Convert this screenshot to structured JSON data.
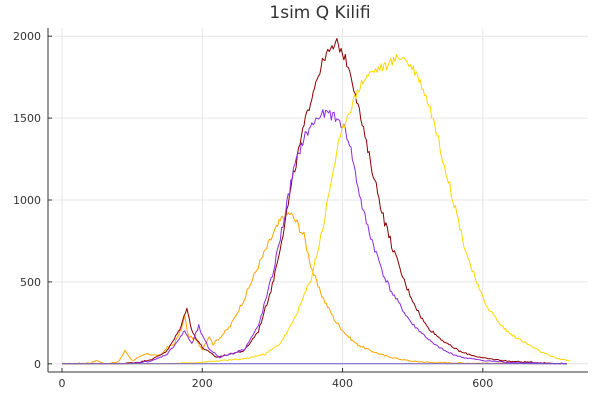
{
  "chart_data": {
    "type": "line",
    "title": "1sim Q Kilifi",
    "xlabel": "",
    "ylabel": "",
    "xlim": [
      -20,
      750
    ],
    "ylim": [
      -50,
      2050
    ],
    "xticks": [
      0,
      200,
      400,
      600
    ],
    "yticks": [
      0,
      500,
      1000,
      1500,
      2000
    ],
    "xtick_labels": [
      "0",
      "200",
      "400",
      "600"
    ],
    "ytick_labels": [
      "0",
      "500",
      "1000",
      "1500",
      "2000"
    ],
    "grid": true,
    "legend": "none",
    "series": [
      {
        "color": "#ffa500",
        "points": [
          [
            0,
            0
          ],
          [
            40,
            5
          ],
          [
            50,
            20
          ],
          [
            60,
            0
          ],
          [
            80,
            10
          ],
          [
            90,
            80
          ],
          [
            100,
            20
          ],
          [
            120,
            60
          ],
          [
            140,
            50
          ],
          [
            150,
            100
          ],
          [
            160,
            120
          ],
          [
            170,
            210
          ],
          [
            175,
            290
          ],
          [
            180,
            170
          ],
          [
            190,
            150
          ],
          [
            200,
            90
          ],
          [
            210,
            170
          ],
          [
            215,
            120
          ],
          [
            225,
            160
          ],
          [
            240,
            230
          ],
          [
            260,
            400
          ],
          [
            280,
            600
          ],
          [
            300,
            780
          ],
          [
            315,
            900
          ],
          [
            325,
            920
          ],
          [
            335,
            860
          ],
          [
            345,
            780
          ],
          [
            355,
            600
          ],
          [
            365,
            470
          ],
          [
            375,
            380
          ],
          [
            390,
            260
          ],
          [
            405,
            180
          ],
          [
            420,
            120
          ],
          [
            440,
            80
          ],
          [
            460,
            50
          ],
          [
            480,
            30
          ],
          [
            500,
            15
          ],
          [
            530,
            8
          ],
          [
            580,
            4
          ],
          [
            640,
            2
          ],
          [
            720,
            0
          ]
        ]
      },
      {
        "color": "#8b0000",
        "points": [
          [
            0,
            0
          ],
          [
            80,
            0
          ],
          [
            110,
            10
          ],
          [
            130,
            30
          ],
          [
            150,
            80
          ],
          [
            160,
            150
          ],
          [
            170,
            230
          ],
          [
            178,
            350
          ],
          [
            185,
            200
          ],
          [
            200,
            100
          ],
          [
            220,
            40
          ],
          [
            240,
            60
          ],
          [
            260,
            80
          ],
          [
            280,
            200
          ],
          [
            300,
            480
          ],
          [
            315,
            800
          ],
          [
            330,
            1150
          ],
          [
            345,
            1450
          ],
          [
            360,
            1700
          ],
          [
            375,
            1880
          ],
          [
            385,
            1920
          ],
          [
            392,
            1960
          ],
          [
            400,
            1900
          ],
          [
            410,
            1800
          ],
          [
            420,
            1620
          ],
          [
            430,
            1420
          ],
          [
            440,
            1230
          ],
          [
            450,
            1050
          ],
          [
            460,
            870
          ],
          [
            470,
            730
          ],
          [
            480,
            600
          ],
          [
            490,
            480
          ],
          [
            500,
            390
          ],
          [
            510,
            300
          ],
          [
            520,
            230
          ],
          [
            535,
            170
          ],
          [
            550,
            120
          ],
          [
            570,
            70
          ],
          [
            600,
            35
          ],
          [
            640,
            15
          ],
          [
            690,
            5
          ],
          [
            720,
            0
          ]
        ]
      },
      {
        "color": "#8a2be2",
        "points": [
          [
            0,
            0
          ],
          [
            100,
            0
          ],
          [
            130,
            20
          ],
          [
            150,
            60
          ],
          [
            165,
            140
          ],
          [
            175,
            200
          ],
          [
            185,
            120
          ],
          [
            195,
            230
          ],
          [
            200,
            170
          ],
          [
            210,
            90
          ],
          [
            225,
            40
          ],
          [
            240,
            60
          ],
          [
            260,
            90
          ],
          [
            280,
            230
          ],
          [
            300,
            540
          ],
          [
            315,
            850
          ],
          [
            330,
            1180
          ],
          [
            345,
            1380
          ],
          [
            360,
            1480
          ],
          [
            370,
            1520
          ],
          [
            380,
            1530
          ],
          [
            390,
            1500
          ],
          [
            400,
            1460
          ],
          [
            410,
            1350
          ],
          [
            420,
            1120
          ],
          [
            430,
            920
          ],
          [
            440,
            780
          ],
          [
            450,
            650
          ],
          [
            460,
            530
          ],
          [
            470,
            440
          ],
          [
            480,
            370
          ],
          [
            490,
            300
          ],
          [
            500,
            240
          ],
          [
            515,
            180
          ],
          [
            530,
            120
          ],
          [
            550,
            70
          ],
          [
            570,
            40
          ],
          [
            600,
            20
          ],
          [
            640,
            8
          ],
          [
            680,
            3
          ],
          [
            720,
            0
          ]
        ]
      },
      {
        "color": "#ffd700",
        "points": [
          [
            0,
            0
          ],
          [
            150,
            0
          ],
          [
            180,
            5
          ],
          [
            200,
            10
          ],
          [
            230,
            20
          ],
          [
            260,
            30
          ],
          [
            290,
            60
          ],
          [
            310,
            120
          ],
          [
            325,
            220
          ],
          [
            340,
            360
          ],
          [
            355,
            520
          ],
          [
            365,
            700
          ],
          [
            375,
            900
          ],
          [
            385,
            1150
          ],
          [
            395,
            1350
          ],
          [
            405,
            1500
          ],
          [
            415,
            1600
          ],
          [
            425,
            1700
          ],
          [
            435,
            1760
          ],
          [
            445,
            1790
          ],
          [
            455,
            1810
          ],
          [
            465,
            1820
          ],
          [
            475,
            1860
          ],
          [
            485,
            1880
          ],
          [
            495,
            1830
          ],
          [
            505,
            1780
          ],
          [
            515,
            1680
          ],
          [
            525,
            1560
          ],
          [
            535,
            1400
          ],
          [
            545,
            1220
          ],
          [
            555,
            1050
          ],
          [
            565,
            880
          ],
          [
            575,
            700
          ],
          [
            585,
            570
          ],
          [
            595,
            450
          ],
          [
            605,
            360
          ],
          [
            615,
            300
          ],
          [
            625,
            240
          ],
          [
            640,
            180
          ],
          [
            660,
            130
          ],
          [
            680,
            80
          ],
          [
            700,
            40
          ],
          [
            715,
            25
          ],
          [
            725,
            18
          ]
        ]
      },
      {
        "color": "#6a5acd",
        "points": [
          [
            0,
            0
          ],
          [
            720,
            0
          ]
        ]
      }
    ]
  }
}
